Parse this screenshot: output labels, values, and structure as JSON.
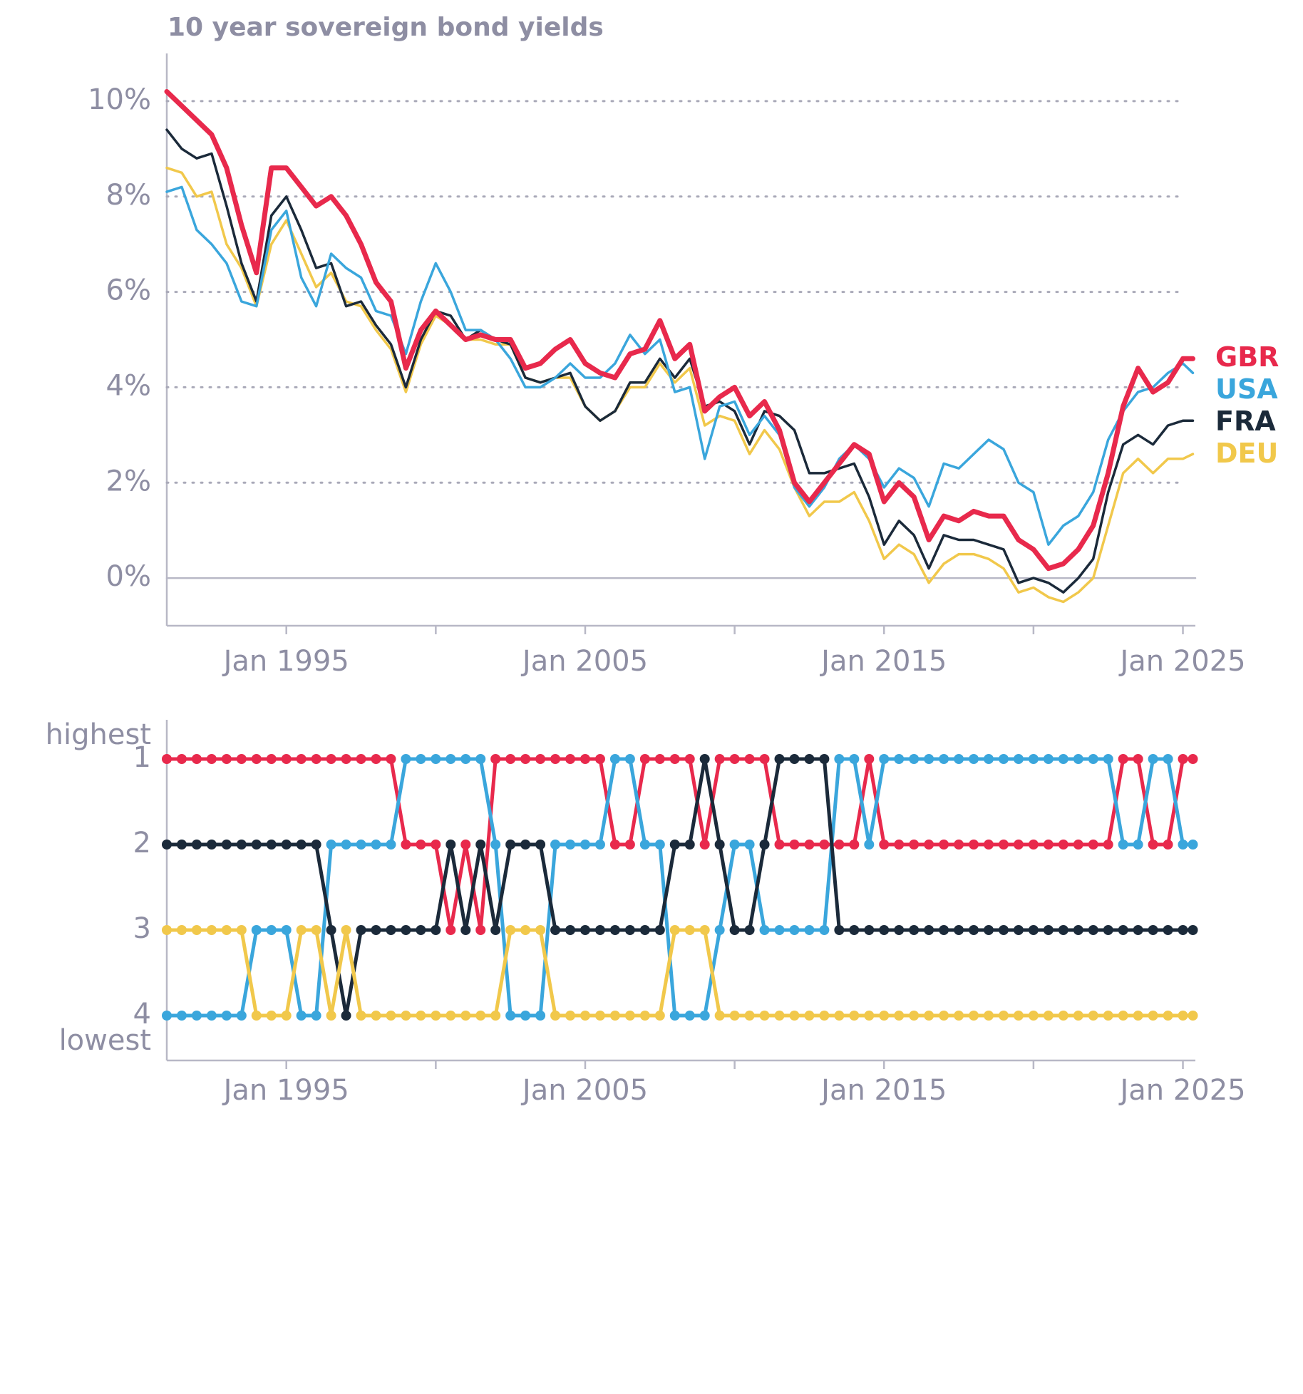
{
  "chart_data": [
    {
      "type": "line",
      "title": "10 year sovereign bond yields",
      "x": [
        "Jan 1991",
        "Jul 1991",
        "Jan 1992",
        "Jul 1992",
        "Jan 1993",
        "Jul 1993",
        "Jan 1994",
        "Jul 1994",
        "Jan 1995",
        "Jul 1995",
        "Jan 1996",
        "Jul 1996",
        "Jan 1997",
        "Jul 1997",
        "Jan 1998",
        "Jul 1998",
        "Jan 1999",
        "Jul 1999",
        "Jan 2000",
        "Jul 2000",
        "Jan 2001",
        "Jul 2001",
        "Jan 2002",
        "Jul 2002",
        "Jan 2003",
        "Jul 2003",
        "Jan 2004",
        "Jul 2004",
        "Jan 2005",
        "Jul 2005",
        "Jan 2006",
        "Jul 2006",
        "Jan 2007",
        "Jul 2007",
        "Jan 2008",
        "Jul 2008",
        "Jan 2009",
        "Jul 2009",
        "Jan 2010",
        "Jul 2010",
        "Jan 2011",
        "Jul 2011",
        "Jan 2012",
        "Jul 2012",
        "Jan 2013",
        "Jul 2013",
        "Jan 2014",
        "Jul 2014",
        "Jan 2015",
        "Jul 2015",
        "Jan 2016",
        "Jul 2016",
        "Jan 2017",
        "Jul 2017",
        "Jan 2018",
        "Jul 2018",
        "Jan 2019",
        "Jul 2019",
        "Jan 2020",
        "Jul 2020",
        "Jan 2021",
        "Jul 2021",
        "Jan 2022",
        "Jul 2022",
        "Jan 2023",
        "Jul 2023",
        "Jan 2024",
        "Jul 2024",
        "Jan 2025",
        "May 2025"
      ],
      "series": [
        {
          "name": "GBR",
          "color": "#e8294c",
          "values": [
            10.2,
            9.9,
            9.6,
            9.3,
            8.6,
            7.4,
            6.4,
            8.6,
            8.6,
            8.2,
            7.8,
            8.0,
            7.6,
            7.0,
            6.2,
            5.8,
            4.4,
            5.2,
            5.6,
            5.3,
            5.0,
            5.1,
            5.0,
            5.0,
            4.4,
            4.5,
            4.8,
            5.0,
            4.5,
            4.3,
            4.2,
            4.7,
            4.8,
            5.4,
            4.6,
            4.9,
            3.5,
            3.8,
            4.0,
            3.4,
            3.7,
            3.1,
            2.0,
            1.6,
            2.0,
            2.4,
            2.8,
            2.6,
            1.6,
            2.0,
            1.7,
            0.8,
            1.3,
            1.2,
            1.4,
            1.3,
            1.3,
            0.8,
            0.6,
            0.2,
            0.3,
            0.6,
            1.1,
            2.2,
            3.6,
            4.4,
            3.9,
            4.1,
            4.6,
            4.6
          ]
        },
        {
          "name": "USA",
          "color": "#3aa6dc",
          "values": [
            8.1,
            8.2,
            7.3,
            7.0,
            6.6,
            5.8,
            5.7,
            7.3,
            7.7,
            6.3,
            5.7,
            6.8,
            6.5,
            6.3,
            5.6,
            5.5,
            4.7,
            5.8,
            6.6,
            6.0,
            5.2,
            5.2,
            5.0,
            4.6,
            4.0,
            4.0,
            4.2,
            4.5,
            4.2,
            4.2,
            4.5,
            5.1,
            4.7,
            5.0,
            3.9,
            4.0,
            2.5,
            3.6,
            3.7,
            3.0,
            3.4,
            3.0,
            1.9,
            1.5,
            1.9,
            2.5,
            2.8,
            2.5,
            1.9,
            2.3,
            2.1,
            1.5,
            2.4,
            2.3,
            2.6,
            2.9,
            2.7,
            2.0,
            1.8,
            0.7,
            1.1,
            1.3,
            1.8,
            2.9,
            3.5,
            3.9,
            4.0,
            4.3,
            4.5,
            4.3
          ]
        },
        {
          "name": "FRA",
          "color": "#1b2a3a",
          "values": [
            9.4,
            9.0,
            8.8,
            8.9,
            7.8,
            6.6,
            5.8,
            7.6,
            8.0,
            7.3,
            6.5,
            6.6,
            5.7,
            5.8,
            5.3,
            4.9,
            4.0,
            5.0,
            5.6,
            5.5,
            5.0,
            5.2,
            5.0,
            4.9,
            4.2,
            4.1,
            4.2,
            4.3,
            3.6,
            3.3,
            3.5,
            4.1,
            4.1,
            4.6,
            4.2,
            4.6,
            3.6,
            3.7,
            3.5,
            2.8,
            3.5,
            3.4,
            3.1,
            2.2,
            2.2,
            2.3,
            2.4,
            1.7,
            0.7,
            1.2,
            0.9,
            0.2,
            0.9,
            0.8,
            0.8,
            0.7,
            0.6,
            -0.1,
            0.0,
            -0.1,
            -0.3,
            0.0,
            0.4,
            1.8,
            2.8,
            3.0,
            2.8,
            3.2,
            3.3,
            3.3
          ]
        },
        {
          "name": "DEU",
          "color": "#f1c84b",
          "values": [
            8.6,
            8.5,
            8.0,
            8.1,
            7.0,
            6.5,
            5.7,
            7.0,
            7.5,
            6.8,
            6.1,
            6.4,
            5.8,
            5.7,
            5.2,
            4.8,
            3.9,
            4.9,
            5.5,
            5.3,
            5.0,
            5.0,
            4.9,
            4.9,
            4.2,
            4.1,
            4.2,
            4.2,
            3.6,
            3.3,
            3.5,
            4.0,
            4.0,
            4.5,
            4.1,
            4.4,
            3.2,
            3.4,
            3.3,
            2.6,
            3.1,
            2.7,
            1.9,
            1.3,
            1.6,
            1.6,
            1.8,
            1.2,
            0.4,
            0.7,
            0.5,
            -0.1,
            0.3,
            0.5,
            0.5,
            0.4,
            0.2,
            -0.3,
            -0.2,
            -0.4,
            -0.5,
            -0.3,
            0.0,
            1.1,
            2.2,
            2.5,
            2.2,
            2.5,
            2.5,
            2.6
          ]
        }
      ],
      "xlim": [
        "Jan 1991",
        "Jun 2025"
      ],
      "xticks": [
        "Jan 1995",
        "Jan 2005",
        "Jan 2015",
        "Jan 2025"
      ],
      "x_minor_ticks": [
        "Jan 2000",
        "Jan 2010",
        "Jan 2020"
      ],
      "ylim": [
        -1,
        11
      ],
      "yticks": [
        {
          "value": 0,
          "label": "0%"
        },
        {
          "value": 2,
          "label": "2%"
        },
        {
          "value": 4,
          "label": "4%"
        },
        {
          "value": 6,
          "label": "6%"
        },
        {
          "value": 8,
          "label": "8%"
        },
        {
          "value": 10,
          "label": "10%"
        }
      ],
      "grid": true
    },
    {
      "type": "rank",
      "x": [
        "Jan 1991",
        "Jul 1991",
        "Jan 1992",
        "Jul 1992",
        "Jan 1993",
        "Jul 1993",
        "Jan 1994",
        "Jul 1994",
        "Jan 1995",
        "Jul 1995",
        "Jan 1996",
        "Jul 1996",
        "Jan 1997",
        "Jul 1997",
        "Jan 1998",
        "Jul 1998",
        "Jan 1999",
        "Jul 1999",
        "Jan 2000",
        "Jul 2000",
        "Jan 2001",
        "Jul 2001",
        "Jan 2002",
        "Jul 2002",
        "Jan 2003",
        "Jul 2003",
        "Jan 2004",
        "Jul 2004",
        "Jan 2005",
        "Jul 2005",
        "Jan 2006",
        "Jul 2006",
        "Jan 2007",
        "Jul 2007",
        "Jan 2008",
        "Jul 2008",
        "Jan 2009",
        "Jul 2009",
        "Jan 2010",
        "Jul 2010",
        "Jan 2011",
        "Jul 2011",
        "Jan 2012",
        "Jul 2012",
        "Jan 2013",
        "Jul 2013",
        "Jan 2014",
        "Jul 2014",
        "Jan 2015",
        "Jul 2015",
        "Jan 2016",
        "Jul 2016",
        "Jan 2017",
        "Jul 2017",
        "Jan 2018",
        "Jul 2018",
        "Jan 2019",
        "Jul 2019",
        "Jan 2020",
        "Jul 2020",
        "Jan 2021",
        "Jul 2021",
        "Jan 2022",
        "Jul 2022",
        "Jan 2023",
        "Jul 2023",
        "Jan 2024",
        "Jul 2024",
        "Jan 2025",
        "May 2025"
      ],
      "series": [
        {
          "color": "#e8294c",
          "values": [
            1,
            1,
            1,
            1,
            1,
            1,
            1,
            1,
            1,
            1,
            1,
            1,
            1,
            1,
            1,
            1,
            2,
            2,
            2,
            3,
            2,
            3,
            1,
            1,
            1,
            1,
            1,
            1,
            1,
            1,
            2,
            2,
            1,
            1,
            1,
            1,
            2,
            1,
            1,
            1,
            1,
            2,
            2,
            2,
            2,
            2,
            2,
            1,
            2,
            2,
            2,
            2,
            2,
            2,
            2,
            2,
            2,
            2,
            2,
            2,
            2,
            2,
            2,
            2,
            1,
            1,
            2,
            2,
            1,
            1
          ]
        },
        {
          "color": "#3aa6dc",
          "values": [
            4,
            4,
            4,
            4,
            4,
            4,
            3,
            3,
            3,
            4,
            4,
            2,
            2,
            2,
            2,
            2,
            1,
            1,
            1,
            1,
            1,
            1,
            2,
            4,
            4,
            4,
            2,
            2,
            2,
            2,
            1,
            1,
            2,
            2,
            4,
            4,
            4,
            3,
            2,
            2,
            3,
            3,
            3,
            3,
            3,
            1,
            1,
            2,
            1,
            1,
            1,
            1,
            1,
            1,
            1,
            1,
            1,
            1,
            1,
            1,
            1,
            1,
            1,
            1,
            2,
            2,
            1,
            1,
            2,
            2
          ]
        },
        {
          "color": "#1b2a3a",
          "values": [
            2,
            2,
            2,
            2,
            2,
            2,
            2,
            2,
            2,
            2,
            2,
            3,
            4,
            3,
            3,
            3,
            3,
            3,
            3,
            2,
            3,
            2,
            3,
            2,
            2,
            2,
            3,
            3,
            3,
            3,
            3,
            3,
            3,
            3,
            2,
            2,
            1,
            2,
            3,
            3,
            2,
            1,
            1,
            1,
            1,
            3,
            3,
            3,
            3,
            3,
            3,
            3,
            3,
            3,
            3,
            3,
            3,
            3,
            3,
            3,
            3,
            3,
            3,
            3,
            3,
            3,
            3,
            3,
            3,
            3
          ]
        },
        {
          "color": "#f1c84b",
          "values": [
            3,
            3,
            3,
            3,
            3,
            3,
            4,
            4,
            4,
            3,
            3,
            4,
            3,
            4,
            4,
            4,
            4,
            4,
            4,
            4,
            4,
            4,
            4,
            3,
            3,
            3,
            4,
            4,
            4,
            4,
            4,
            4,
            4,
            4,
            3,
            3,
            3,
            4,
            4,
            4,
            4,
            4,
            4,
            4,
            4,
            4,
            4,
            4,
            4,
            4,
            4,
            4,
            4,
            4,
            4,
            4,
            4,
            4,
            4,
            4,
            4,
            4,
            4,
            4,
            4,
            4,
            4,
            4,
            4,
            4
          ]
        }
      ],
      "xlim": [
        "Jan 1991",
        "Jun 2025"
      ],
      "xticks": [
        "Jan 1995",
        "Jan 2005",
        "Jan 2015",
        "Jan 2025"
      ],
      "x_minor_ticks": [
        "Jan 2000",
        "Jan 2010",
        "Jan 2020"
      ],
      "ylim": [
        4.5,
        0.5
      ],
      "yticks": [
        1,
        2,
        3,
        4
      ],
      "y_top_label": "highest",
      "y_bottom_label": "lowest"
    }
  ]
}
